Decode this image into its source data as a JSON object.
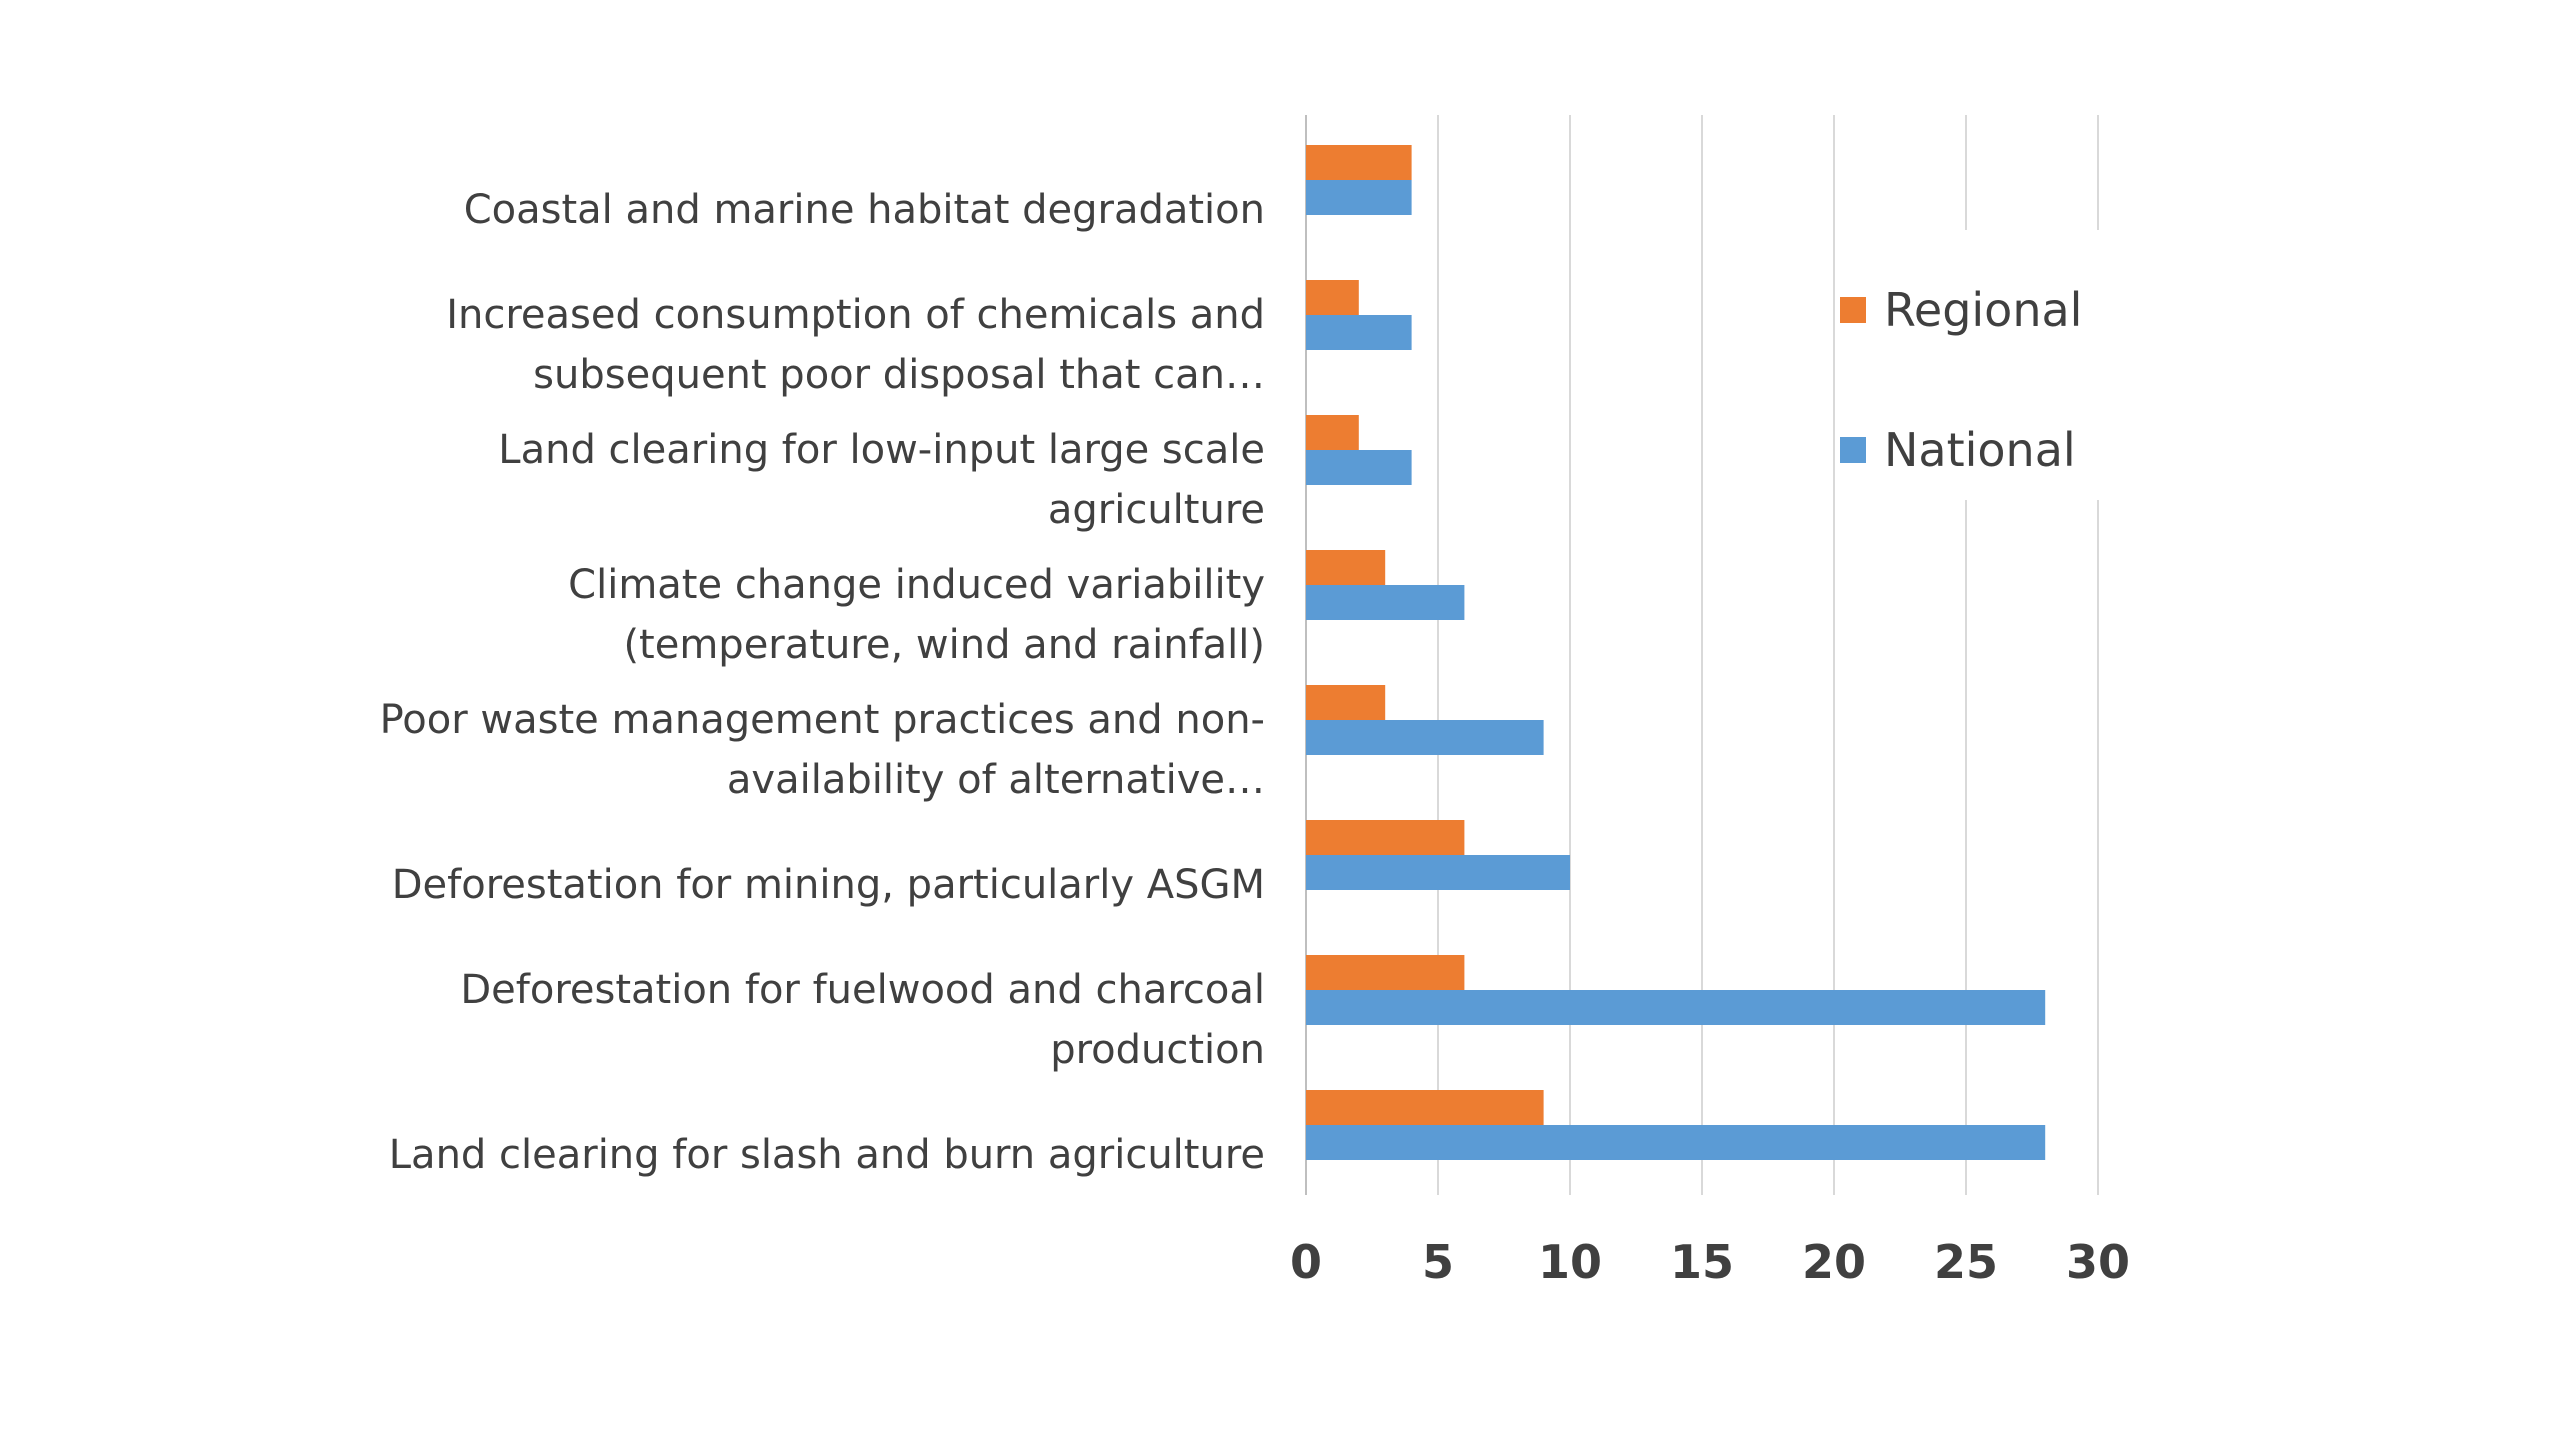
{
  "chart_data": {
    "type": "bar",
    "orientation": "horizontal",
    "categories": [
      "Coastal and marine habitat degradation",
      "Increased consumption of chemicals and subsequent poor disposal that can…",
      "Land clearing for low-input large scale agriculture",
      "Climate change induced variability (temperature, wind and rainfall)",
      "Poor waste management practices and non-availability of alternative…",
      "Deforestation for mining, particularly ASGM",
      "Deforestation for fuelwood and charcoal production",
      "Land clearing for slash and burn agriculture"
    ],
    "series": [
      {
        "name": "Regional",
        "color": "#ED7D31",
        "values": [
          4,
          2,
          2,
          3,
          3,
          6,
          6,
          9
        ]
      },
      {
        "name": "National",
        "color": "#5B9BD5",
        "values": [
          4,
          4,
          4,
          6,
          9,
          10,
          28,
          28
        ]
      }
    ],
    "xlim": [
      0,
      30
    ],
    "xticks": [
      "0",
      "5",
      "10",
      "15",
      "20",
      "25",
      "30"
    ],
    "grid": true,
    "legend_position": "right",
    "title": "",
    "xlabel": "",
    "ylabel": ""
  }
}
